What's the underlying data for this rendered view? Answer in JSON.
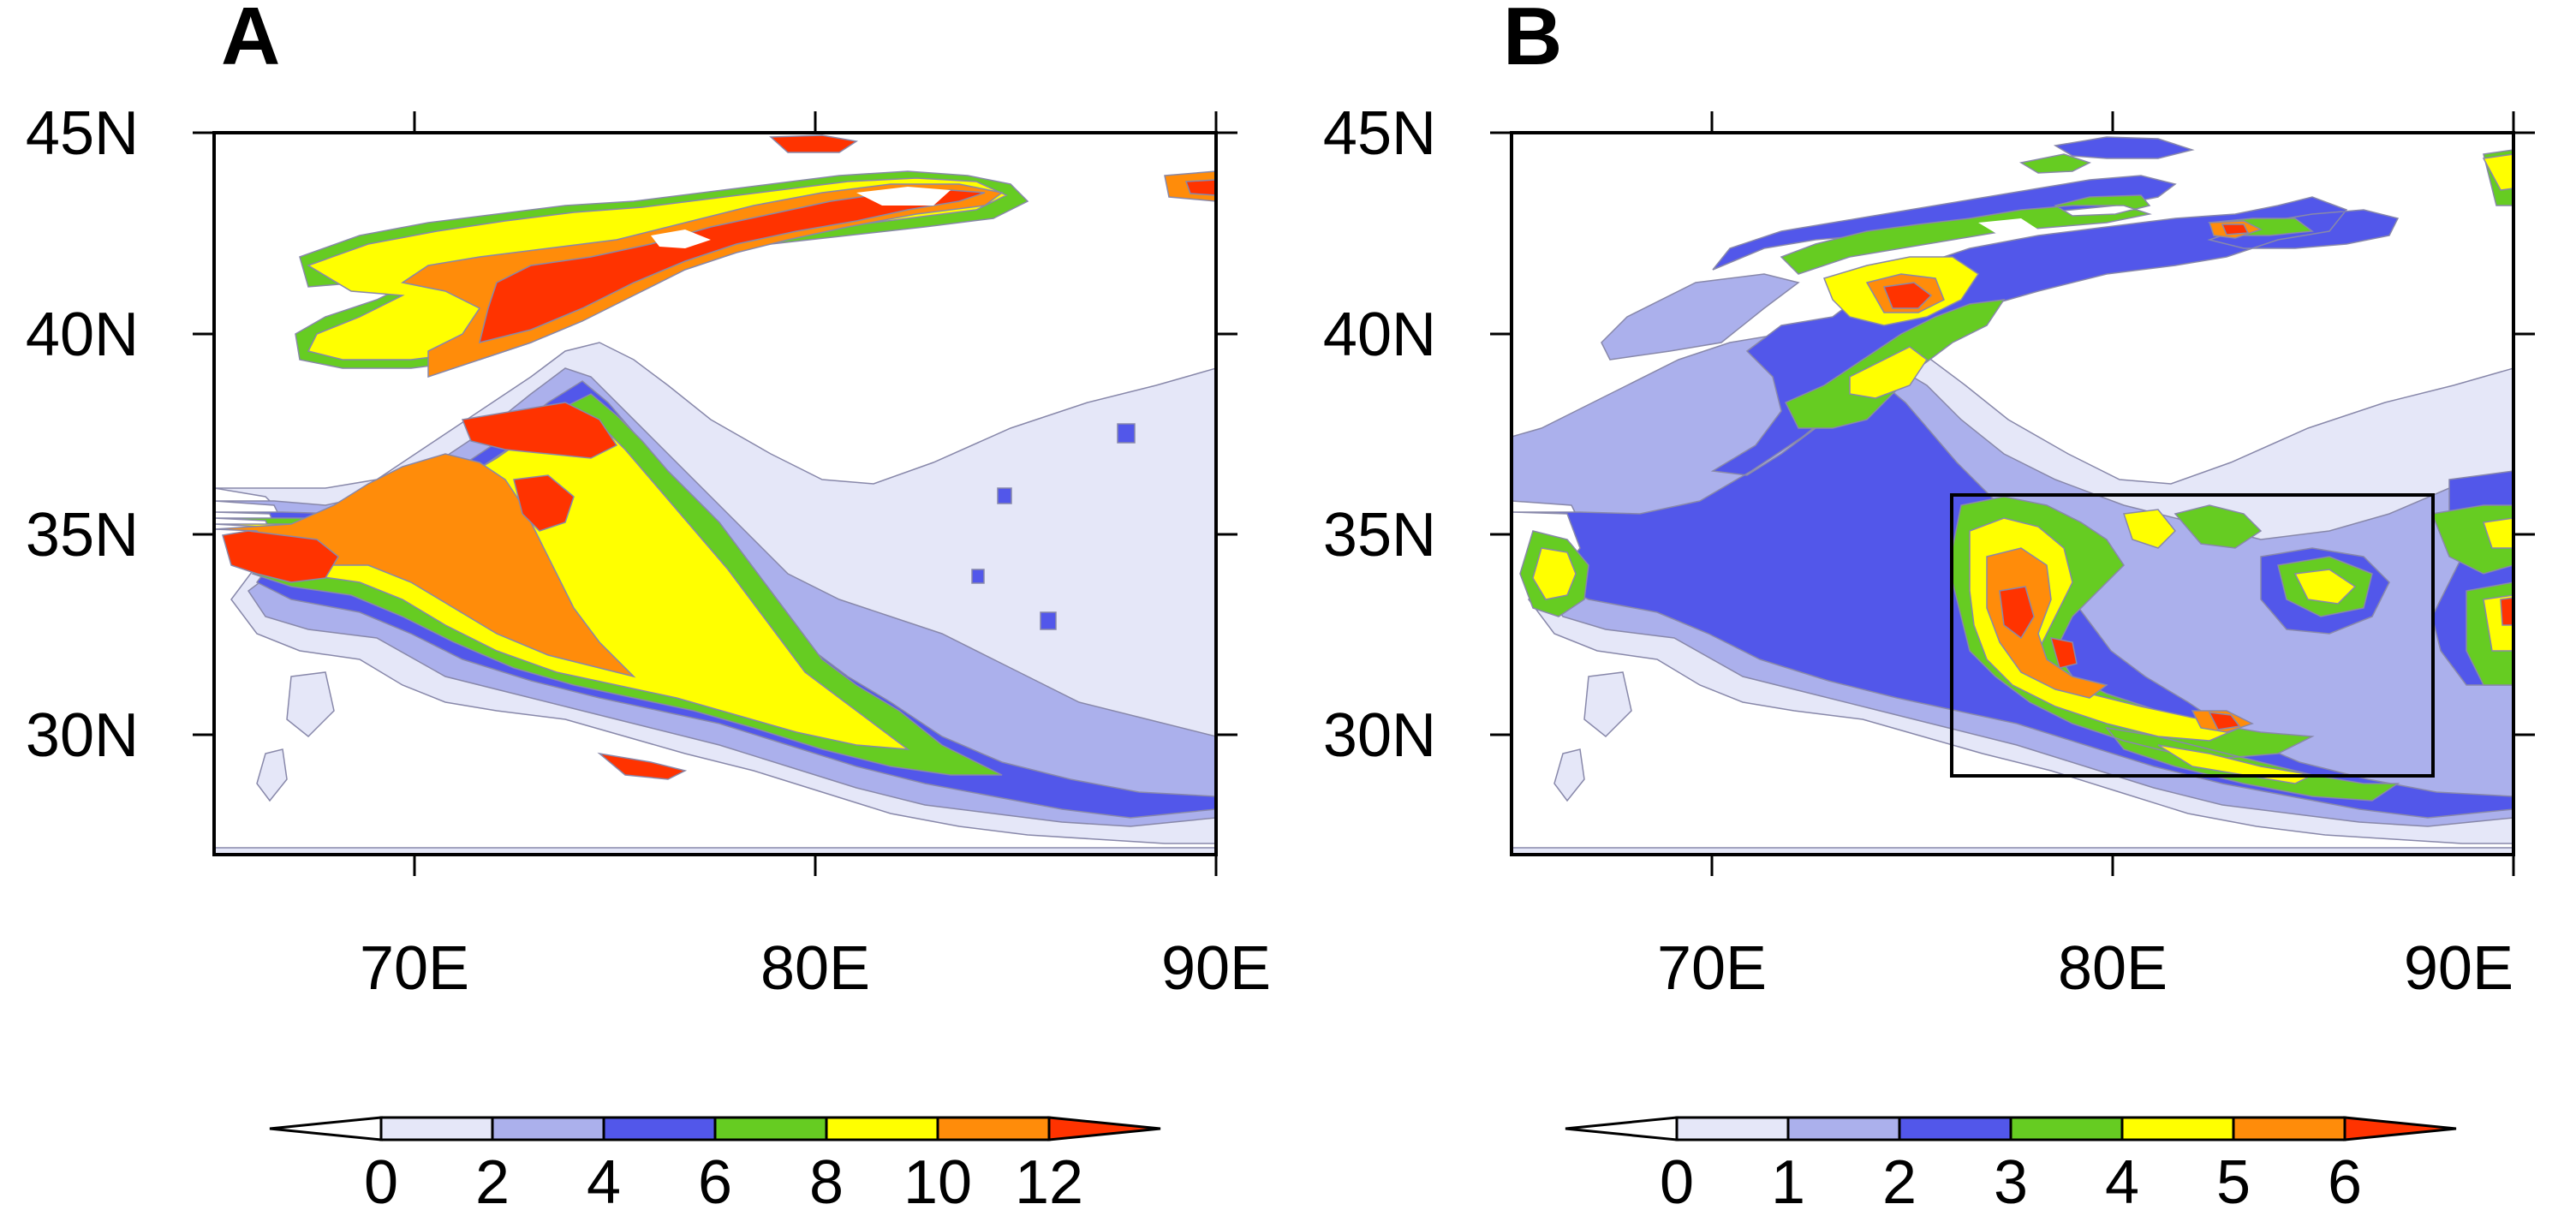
{
  "chart_data": [
    {
      "type": "contour-map",
      "panel": "A",
      "lon_range": [
        65,
        90
      ],
      "lat_range": [
        27,
        45
      ],
      "x_ticks": [
        "70E",
        "80E",
        "90E"
      ],
      "y_ticks": [
        "45N",
        "40N",
        "35N",
        "30N"
      ],
      "levels": [
        "0",
        "2",
        "4",
        "6",
        "8",
        "10",
        "12"
      ]
    },
    {
      "type": "contour-map",
      "panel": "B",
      "lon_range": [
        65,
        90
      ],
      "lat_range": [
        27,
        45
      ],
      "x_ticks": [
        "70E",
        "80E",
        "90E"
      ],
      "y_ticks": [
        "45N",
        "40N",
        "35N",
        "30N"
      ],
      "levels": [
        "0",
        "1",
        "2",
        "3",
        "4",
        "5",
        "6"
      ],
      "box": {
        "lon": [
          76,
          88
        ],
        "lat": [
          29,
          36
        ]
      }
    }
  ],
  "colors": {
    "bin0": "#e5e7f8",
    "bin1": "#abb0ec",
    "bin2": "#5257ea",
    "bin3": "#66cc22",
    "bin4": "#ffff00",
    "bin5": "#ff8c0a",
    "bin6": "#ff3300",
    "open_end": "#ffffff",
    "contour_line": "#8888aa",
    "frame": "#000000"
  }
}
